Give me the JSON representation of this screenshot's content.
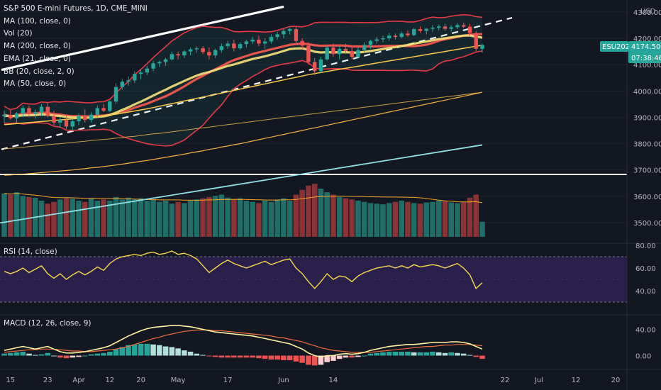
{
  "legend": {
    "symbol": "S&P 500 E-mini Futures, 1D, CME_MINI",
    "indicators": [
      "MA (100, close, 0)",
      "Vol (20)",
      "MA (200, close, 0)",
      "EMA (21, close, 0)",
      "BB (20, close, 2, 0)",
      "MA (50, close, 0)"
    ]
  },
  "rsi_label": "RSI (14, close)",
  "macd_label": "MACD (12, 26, close, 9)",
  "price_axis": {
    "currency": "USD",
    "ticks": [
      "4300.00",
      "4200.00",
      "4100.00",
      "4000.00",
      "3900.00",
      "3800.00",
      "3700.00",
      "3600.00",
      "3500.00"
    ],
    "last_symbol": "ESU2021",
    "last_price": "4174.50",
    "countdown": "07:38:46"
  },
  "rsi_axis": {
    "ticks": [
      "80.00",
      "60.00",
      "40.00"
    ]
  },
  "macd_axis": {
    "ticks": [
      "40.00",
      "0.00"
    ]
  },
  "date_axis": {
    "ticks": [
      "15",
      "23",
      "Apr",
      "12",
      "20",
      "May",
      "17",
      "Jun",
      "14",
      "22",
      "Jul",
      "12",
      "20"
    ]
  },
  "colors": {
    "up": "#26a69a",
    "down": "#ef5350",
    "bg": "#131722",
    "rsi_bg": "#2a1f4a",
    "ma": "#f7c948",
    "ema": "#f7e37a",
    "bb": "#e63946"
  },
  "chart_data": [
    {
      "type": "candlestick",
      "title": "S&P 500 E-mini Futures, 1D, CME_MINI",
      "ylim": [
        3430,
        4340
      ],
      "ohlc": [
        [
          3904,
          3925,
          3880,
          3910
        ],
        [
          3910,
          3930,
          3890,
          3896
        ],
        [
          3896,
          3920,
          3880,
          3915
        ],
        [
          3915,
          3945,
          3900,
          3935
        ],
        [
          3935,
          3945,
          3905,
          3912
        ],
        [
          3912,
          3930,
          3895,
          3920
        ],
        [
          3920,
          3950,
          3905,
          3940
        ],
        [
          3940,
          3955,
          3900,
          3905
        ],
        [
          3905,
          3925,
          3870,
          3880
        ],
        [
          3880,
          3900,
          3860,
          3890
        ],
        [
          3890,
          3905,
          3855,
          3865
        ],
        [
          3865,
          3895,
          3850,
          3885
        ],
        [
          3885,
          3915,
          3870,
          3905
        ],
        [
          3905,
          3930,
          3880,
          3890
        ],
        [
          3890,
          3920,
          3880,
          3910
        ],
        [
          3910,
          3945,
          3900,
          3935
        ],
        [
          3935,
          3950,
          3920,
          3925
        ],
        [
          3925,
          3965,
          3920,
          3960
        ],
        [
          3960,
          4030,
          3950,
          4015
        ],
        [
          4015,
          4045,
          4005,
          4035
        ],
        [
          4035,
          4055,
          4020,
          4040
        ],
        [
          4040,
          4075,
          4030,
          4065
        ],
        [
          4065,
          4080,
          4045,
          4070
        ],
        [
          4070,
          4095,
          4060,
          4085
        ],
        [
          4085,
          4115,
          4075,
          4105
        ],
        [
          4105,
          4115,
          4090,
          4110
        ],
        [
          4110,
          4125,
          4095,
          4120
        ],
        [
          4120,
          4150,
          4115,
          4140
        ],
        [
          4140,
          4150,
          4120,
          4135
        ],
        [
          4135,
          4155,
          4125,
          4150
        ],
        [
          4150,
          4165,
          4135,
          4158
        ],
        [
          4158,
          4168,
          4145,
          4162
        ],
        [
          4162,
          4170,
          4140,
          4148
        ],
        [
          4148,
          4165,
          4120,
          4135
        ],
        [
          4135,
          4160,
          4125,
          4155
        ],
        [
          4155,
          4180,
          4145,
          4170
        ],
        [
          4170,
          4190,
          4160,
          4180
        ],
        [
          4180,
          4195,
          4150,
          4162
        ],
        [
          4162,
          4185,
          4155,
          4178
        ],
        [
          4178,
          4195,
          4165,
          4188
        ],
        [
          4188,
          4205,
          4178,
          4195
        ],
        [
          4195,
          4210,
          4170,
          4180
        ],
        [
          4180,
          4200,
          4160,
          4188
        ],
        [
          4188,
          4215,
          4180,
          4205
        ],
        [
          4205,
          4225,
          4195,
          4215
        ],
        [
          4215,
          4235,
          4200,
          4228
        ],
        [
          4228,
          4240,
          4215,
          4235
        ],
        [
          4235,
          4245,
          4180,
          4190
        ],
        [
          4190,
          4200,
          4160,
          4172
        ],
        [
          4172,
          4185,
          4100,
          4110
        ],
        [
          4110,
          4125,
          4060,
          4075
        ],
        [
          4075,
          4130,
          4070,
          4120
        ],
        [
          4120,
          4175,
          4115,
          4165
        ],
        [
          4165,
          4180,
          4130,
          4140
        ],
        [
          4140,
          4170,
          4120,
          4160
        ],
        [
          4160,
          4180,
          4140,
          4152
        ],
        [
          4152,
          4165,
          4120,
          4130
        ],
        [
          4130,
          4165,
          4125,
          4155
        ],
        [
          4155,
          4185,
          4145,
          4175
        ],
        [
          4175,
          4195,
          4160,
          4190
        ],
        [
          4190,
          4205,
          4180,
          4196
        ],
        [
          4196,
          4210,
          4185,
          4200
        ],
        [
          4200,
          4220,
          4190,
          4210
        ],
        [
          4210,
          4218,
          4195,
          4205
        ],
        [
          4205,
          4225,
          4200,
          4218
        ],
        [
          4218,
          4230,
          4205,
          4212
        ],
        [
          4212,
          4240,
          4208,
          4235
        ],
        [
          4235,
          4245,
          4220,
          4228
        ],
        [
          4228,
          4240,
          4215,
          4236
        ],
        [
          4236,
          4250,
          4225,
          4240
        ],
        [
          4240,
          4252,
          4230,
          4245
        ],
        [
          4245,
          4255,
          4228,
          4236
        ],
        [
          4236,
          4250,
          4225,
          4242
        ],
        [
          4242,
          4258,
          4235,
          4250
        ],
        [
          4250,
          4260,
          4238,
          4244
        ],
        [
          4244,
          4255,
          4210,
          4220
        ],
        [
          4220,
          4228,
          4150,
          4160
        ],
        [
          4160,
          4180,
          4145,
          4174.5
        ]
      ],
      "series": [
        {
          "name": "MA (200, close, 0)",
          "values": [
            3780,
            3782,
            3784,
            3786,
            3789,
            3791,
            3793,
            3796,
            3798,
            3800,
            3802,
            3805,
            3807,
            3809,
            3812,
            3814,
            3816,
            3818,
            3821,
            3823,
            3826,
            3828,
            3831,
            3834,
            3837,
            3839,
            3842,
            3845,
            3848,
            3851,
            3854,
            3857,
            3860,
            3863,
            3866,
            3869,
            3872,
            3875,
            3878,
            3881,
            3884,
            3887,
            3890,
            3893,
            3896,
            3899,
            3902,
            3905,
            3908,
            3911,
            3914,
            3917,
            3920,
            3923,
            3926,
            3929,
            3932,
            3935,
            3938,
            3941,
            3944,
            3947,
            3950,
            3953,
            3956,
            3959,
            3962,
            3965,
            3968,
            3971,
            3974,
            3977,
            3980,
            3983,
            3986,
            3989,
            3992,
            3995
          ]
        },
        {
          "name": "MA (100, close, 0)",
          "values": [
            3680,
            3681,
            3683,
            3684,
            3686,
            3688,
            3690,
            3692,
            3694,
            3696,
            3698,
            3700,
            3703,
            3705,
            3708,
            3710,
            3713,
            3716,
            3719,
            3722,
            3726,
            3729,
            3733,
            3736,
            3740,
            3744,
            3748,
            3752,
            3756,
            3760,
            3765,
            3769,
            3773,
            3778,
            3782,
            3787,
            3791,
            3796,
            3800,
            3805,
            3810,
            3815,
            3820,
            3825,
            3830,
            3835,
            3840,
            3845,
            3850,
            3855,
            3860,
            3865,
            3870,
            3875,
            3880,
            3885,
            3890,
            3895,
            3900,
            3905,
            3910,
            3915,
            3920,
            3925,
            3930,
            3935,
            3940,
            3945,
            3950,
            3955,
            3960,
            3965,
            3970,
            3975,
            3980,
            3985,
            3990,
            3995
          ]
        },
        {
          "name": "MA (50, close, 0)",
          "values": [
            3872,
            3874,
            3876,
            3878,
            3880,
            3882,
            3884,
            3886,
            3888,
            3890,
            3892,
            3894,
            3896,
            3898,
            3900,
            3903,
            3906,
            3909,
            3912,
            3916,
            3920,
            3924,
            3928,
            3932,
            3937,
            3942,
            3947,
            3952,
            3957,
            3962,
            3967,
            3972,
            3977,
            3982,
            3987,
            3992,
            3997,
            4002,
            4007,
            4012,
            4017,
            4022,
            4027,
            4032,
            4037,
            4042,
            4047,
            4052,
            4057,
            4062,
            4066,
            4070,
            4074,
            4078,
            4082,
            4086,
            4090,
            4094,
            4098,
            4102,
            4106,
            4110,
            4114,
            4118,
            4122,
            4126,
            4130,
            4134,
            4138,
            4142,
            4146,
            4150,
            4154,
            4158,
            4162,
            4166,
            4170,
            4174
          ]
        }
      ]
    },
    {
      "type": "bar",
      "title": "Vol (20)",
      "values": [
        72,
        70,
        74,
        68,
        66,
        65,
        60,
        55,
        58,
        62,
        64,
        63,
        60,
        58,
        64,
        60,
        62,
        60,
        66,
        62,
        65,
        62,
        64,
        60,
        62,
        58,
        60,
        55,
        58,
        56,
        60,
        62,
        64,
        66,
        68,
        70,
        65,
        62,
        64,
        60,
        58,
        56,
        60,
        58,
        62,
        64,
        60,
        70,
        78,
        85,
        88,
        80,
        74,
        70,
        66,
        64,
        62,
        60,
        58,
        56,
        55,
        54,
        56,
        58,
        60,
        58,
        56,
        55,
        57,
        58,
        60,
        59,
        57,
        56,
        58,
        65,
        70,
        25
      ]
    },
    {
      "type": "line",
      "title": "RSI (14, close)",
      "ylim": [
        20,
        80
      ],
      "series": [
        {
          "name": "RSI (14, close)",
          "values": [
            57,
            55,
            57,
            60,
            56,
            59,
            62,
            55,
            51,
            55,
            50,
            54,
            57,
            54,
            57,
            61,
            58,
            64,
            68,
            70,
            71,
            72,
            71,
            73,
            74,
            72,
            73,
            75,
            72,
            73,
            71,
            68,
            62,
            56,
            60,
            64,
            67,
            64,
            62,
            60,
            62,
            64,
            66,
            63,
            65,
            67,
            68,
            60,
            55,
            48,
            42,
            48,
            55,
            50,
            53,
            52,
            48,
            53,
            56,
            58,
            60,
            61,
            62,
            60,
            62,
            60,
            63,
            61,
            62,
            63,
            62,
            60,
            62,
            64,
            60,
            54,
            42,
            47
          ]
        }
      ]
    },
    {
      "type": "line",
      "title": "MACD (12, 26, close, 9)",
      "ylim": [
        -20,
        60
      ],
      "series": [
        {
          "name": "MACD",
          "values": [
            8,
            10,
            12,
            14,
            12,
            10,
            12,
            14,
            10,
            6,
            4,
            4,
            5,
            6,
            8,
            10,
            12,
            15,
            20,
            25,
            30,
            34,
            38,
            41,
            43,
            44,
            45,
            46,
            46,
            45,
            44,
            42,
            40,
            38,
            36,
            35,
            34,
            33,
            32,
            31,
            30,
            28,
            26,
            24,
            22,
            20,
            18,
            14,
            10,
            4,
            0,
            -2,
            0,
            0,
            2,
            3,
            2,
            3,
            5,
            8,
            10,
            12,
            14,
            15,
            16,
            17,
            17,
            18,
            19,
            20,
            20,
            20,
            21,
            21,
            20,
            18,
            14,
            10
          ]
        },
        {
          "name": "Signal",
          "values": [
            5,
            6,
            7,
            8,
            9,
            9,
            10,
            10,
            10,
            9,
            8,
            7,
            7,
            6,
            6,
            7,
            8,
            9,
            10,
            12,
            14,
            17,
            20,
            23,
            26,
            28,
            31,
            33,
            35,
            37,
            38,
            39,
            39,
            39,
            38,
            38,
            37,
            36,
            35,
            34,
            33,
            32,
            31,
            30,
            28,
            27,
            25,
            23,
            21,
            18,
            15,
            12,
            10,
            8,
            7,
            6,
            5,
            5,
            5,
            5,
            6,
            7,
            8,
            9,
            10,
            11,
            12,
            13,
            14,
            14,
            15,
            16,
            16,
            17,
            17,
            17,
            16,
            15
          ]
        }
      ]
    }
  ]
}
